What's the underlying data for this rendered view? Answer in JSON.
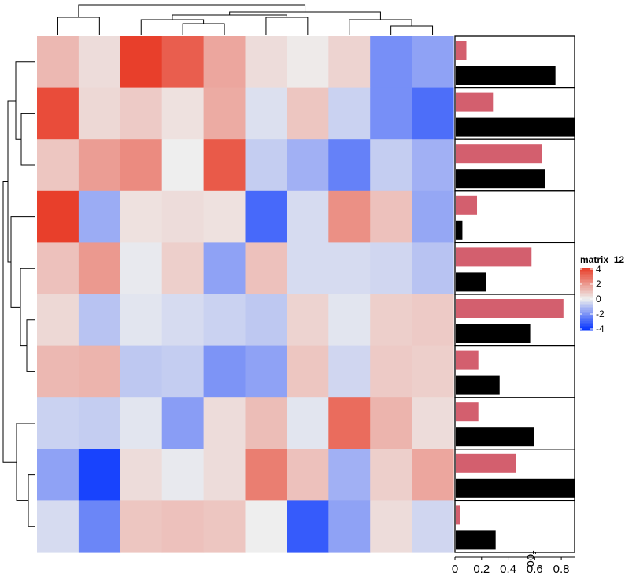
{
  "chart_data": {
    "type": "heatmap",
    "name": "matrix_12",
    "rows": 10,
    "cols": 10,
    "values": [
      [
        1.2,
        0.4,
        3.9,
        3.2,
        1.6,
        0.4,
        0.1,
        0.6,
        -2.0,
        -1.6
      ],
      [
        3.6,
        0.5,
        0.8,
        0.3,
        1.5,
        -0.3,
        0.9,
        -0.6,
        -2.0,
        -2.7
      ],
      [
        0.9,
        1.8,
        2.2,
        0.0,
        3.3,
        -0.7,
        -1.3,
        -2.3,
        -0.7,
        -1.3
      ],
      [
        3.9,
        -1.4,
        0.3,
        0.4,
        0.3,
        -2.8,
        -0.4,
        2.1,
        1.0,
        -1.5
      ],
      [
        1.0,
        1.9,
        -0.1,
        0.7,
        -1.6,
        1.0,
        -0.4,
        -0.4,
        -0.5,
        -0.9
      ],
      [
        0.5,
        -0.9,
        -0.2,
        -0.4,
        -0.6,
        -0.8,
        0.6,
        -0.2,
        0.7,
        0.8
      ],
      [
        1.2,
        1.3,
        -0.8,
        -0.7,
        -1.9,
        -1.6,
        0.9,
        -0.5,
        0.8,
        0.7
      ],
      [
        -0.6,
        -0.7,
        -0.2,
        -1.7,
        0.4,
        1.1,
        -0.2,
        2.9,
        1.3,
        0.4
      ],
      [
        -1.6,
        -3.6,
        0.4,
        -0.1,
        0.4,
        2.5,
        1.0,
        -1.3,
        0.7,
        1.6
      ],
      [
        -0.4,
        -2.2,
        0.9,
        1.0,
        0.9,
        0.0,
        -3.1,
        -1.6,
        0.4,
        -0.5
      ]
    ],
    "colors": {
      "low": "#0030ff",
      "mid": "#eeeeee",
      "high": "#e83a26"
    },
    "legend": {
      "title": "matrix_12",
      "ticks": [
        "4",
        "2",
        "0",
        "-2",
        "-4"
      ],
      "range": [
        -4,
        4
      ]
    },
    "bar_annotation": {
      "type": "bar",
      "title": "foo",
      "xlim": [
        0,
        0.9
      ],
      "ticks": [
        "0",
        "0.2",
        "0.4",
        "0.6",
        "0.8"
      ],
      "tick_values": [
        0,
        0.2,
        0.4,
        0.6,
        0.8
      ],
      "series": [
        {
          "color": "#d35f6e",
          "values": [
            0.08,
            0.28,
            0.65,
            0.16,
            0.57,
            0.81,
            0.17,
            0.17,
            0.45,
            0.03
          ]
        },
        {
          "color": "#000000",
          "values": [
            0.75,
            0.9,
            0.67,
            0.05,
            0.23,
            0.56,
            0.33,
            0.59,
            0.9,
            0.3
          ]
        }
      ]
    }
  }
}
